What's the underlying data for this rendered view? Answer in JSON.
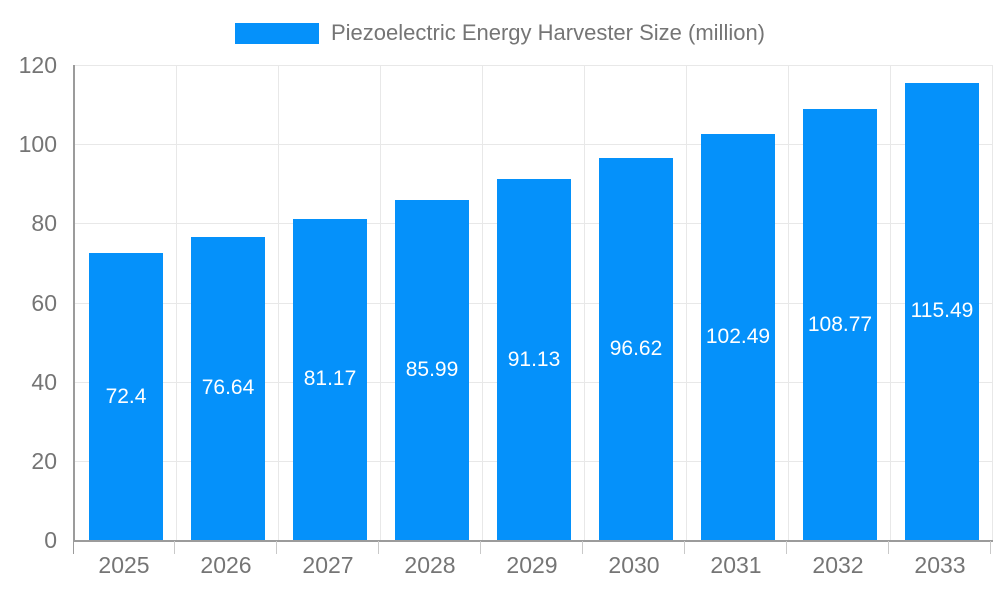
{
  "legend": {
    "label": "Piezoelectric Energy Harvester Size (million)"
  },
  "colors": {
    "bar": "#0591fa",
    "grid": "#e8e8e8",
    "axis": "#9b9b9b",
    "tick": "#c9c9c9",
    "axis_text": "#757575",
    "value_text": "#ffffff",
    "background": "#ffffff"
  },
  "chart_data": {
    "type": "bar",
    "title": "",
    "series_name": "Piezoelectric Energy Harvester Size (million)",
    "categories": [
      "2025",
      "2026",
      "2027",
      "2028",
      "2029",
      "2030",
      "2031",
      "2032",
      "2033"
    ],
    "values": [
      72.4,
      76.64,
      81.17,
      85.99,
      91.13,
      96.62,
      102.49,
      108.77,
      115.49
    ],
    "value_labels": [
      "72.4",
      "76.64",
      "81.17",
      "85.99",
      "91.13",
      "96.62",
      "102.49",
      "108.77",
      "115.49"
    ],
    "xlabel": "",
    "ylabel": "",
    "ylim": [
      0,
      120
    ],
    "yticks": [
      0,
      20,
      40,
      60,
      80,
      100,
      120
    ],
    "grid": true,
    "legend_position": "top",
    "value_label_position": "center-inside-bar"
  }
}
